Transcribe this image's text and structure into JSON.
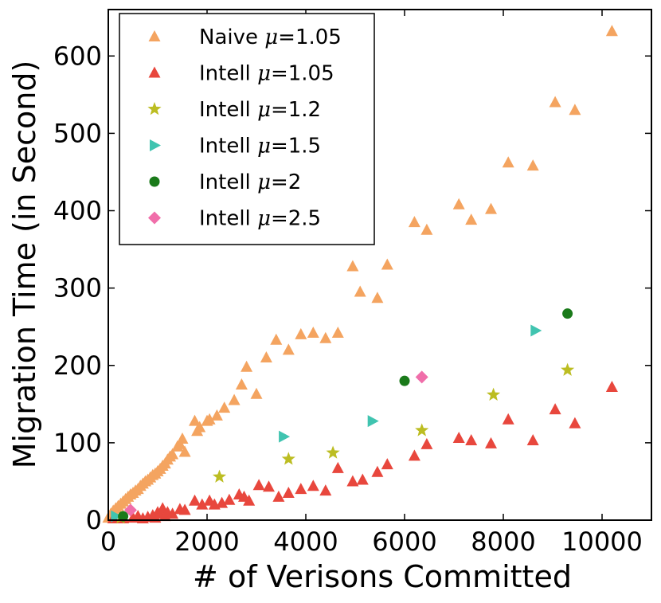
{
  "chart_data": {
    "type": "scatter",
    "title": "",
    "xlabel": "# of Verisons Committed",
    "ylabel": "Migration Time (in Second)",
    "xlim": [
      0,
      11000
    ],
    "ylim": [
      0,
      660
    ],
    "xticks": [
      0,
      2000,
      4000,
      6000,
      8000,
      10000
    ],
    "yticks": [
      0,
      100,
      200,
      300,
      400,
      500,
      600
    ],
    "grid": false,
    "legend_position": "top-left",
    "series": [
      {
        "name": "Naive",
        "mu": "1.05",
        "marker": "triangle-up",
        "color": "#f4a460",
        "points": [
          [
            0,
            3
          ],
          [
            50,
            8
          ],
          [
            100,
            12
          ],
          [
            150,
            15
          ],
          [
            200,
            18
          ],
          [
            250,
            21
          ],
          [
            300,
            24
          ],
          [
            350,
            27
          ],
          [
            400,
            30
          ],
          [
            450,
            33
          ],
          [
            500,
            35
          ],
          [
            550,
            38
          ],
          [
            600,
            40
          ],
          [
            650,
            44
          ],
          [
            700,
            47
          ],
          [
            750,
            50
          ],
          [
            800,
            52
          ],
          [
            850,
            55
          ],
          [
            900,
            58
          ],
          [
            950,
            60
          ],
          [
            1000,
            63
          ],
          [
            1050,
            66
          ],
          [
            1100,
            70
          ],
          [
            1150,
            73
          ],
          [
            1200,
            78
          ],
          [
            1250,
            82
          ],
          [
            1300,
            85
          ],
          [
            1400,
            95
          ],
          [
            1450,
            98
          ],
          [
            1500,
            105
          ],
          [
            1550,
            88
          ],
          [
            1750,
            128
          ],
          [
            1800,
            115
          ],
          [
            1850,
            120
          ],
          [
            2000,
            128
          ],
          [
            2050,
            130
          ],
          [
            2200,
            135
          ],
          [
            2350,
            145
          ],
          [
            2550,
            155
          ],
          [
            2700,
            175
          ],
          [
            2800,
            198
          ],
          [
            3000,
            163
          ],
          [
            3200,
            210
          ],
          [
            3400,
            233
          ],
          [
            3650,
            220
          ],
          [
            3900,
            240
          ],
          [
            4150,
            242
          ],
          [
            4400,
            235
          ],
          [
            4650,
            242
          ],
          [
            4950,
            328
          ],
          [
            5100,
            295
          ],
          [
            5450,
            287
          ],
          [
            5650,
            330
          ],
          [
            6200,
            385
          ],
          [
            6450,
            375
          ],
          [
            7100,
            408
          ],
          [
            7350,
            388
          ],
          [
            7750,
            402
          ],
          [
            8100,
            462
          ],
          [
            8600,
            458
          ],
          [
            9050,
            540
          ],
          [
            9450,
            530
          ],
          [
            10200,
            632
          ]
        ]
      },
      {
        "name": "Intell",
        "mu": "1.05",
        "marker": "triangle-up",
        "color": "#e8473d",
        "points": [
          [
            100,
            2
          ],
          [
            300,
            2
          ],
          [
            500,
            3
          ],
          [
            600,
            5
          ],
          [
            700,
            2
          ],
          [
            800,
            4
          ],
          [
            900,
            6
          ],
          [
            950,
            3
          ],
          [
            1000,
            10
          ],
          [
            1050,
            8
          ],
          [
            1100,
            15
          ],
          [
            1150,
            5
          ],
          [
            1200,
            10
          ],
          [
            1300,
            8
          ],
          [
            1450,
            14
          ],
          [
            1550,
            13
          ],
          [
            1750,
            25
          ],
          [
            1900,
            20
          ],
          [
            2050,
            25
          ],
          [
            2150,
            20
          ],
          [
            2300,
            22
          ],
          [
            2450,
            26
          ],
          [
            2650,
            33
          ],
          [
            2750,
            30
          ],
          [
            2850,
            25
          ],
          [
            3050,
            45
          ],
          [
            3250,
            43
          ],
          [
            3450,
            30
          ],
          [
            3650,
            35
          ],
          [
            3900,
            40
          ],
          [
            4150,
            44
          ],
          [
            4400,
            38
          ],
          [
            4650,
            67
          ],
          [
            4950,
            50
          ],
          [
            5150,
            52
          ],
          [
            5450,
            62
          ],
          [
            5650,
            72
          ],
          [
            6200,
            83
          ],
          [
            6450,
            98
          ],
          [
            7100,
            106
          ],
          [
            7350,
            103
          ],
          [
            7750,
            99
          ],
          [
            8100,
            130
          ],
          [
            8600,
            103
          ],
          [
            9050,
            143
          ],
          [
            9450,
            125
          ],
          [
            10200,
            172
          ]
        ]
      },
      {
        "name": "Intell",
        "mu": "1.2",
        "marker": "star",
        "color": "#bcbd22",
        "points": [
          [
            250,
            3
          ],
          [
            2250,
            56
          ],
          [
            3650,
            79
          ],
          [
            4550,
            87
          ],
          [
            6350,
            116
          ],
          [
            7800,
            162
          ],
          [
            9300,
            194
          ]
        ]
      },
      {
        "name": "Intell",
        "mu": "1.5",
        "marker": "triangle-right",
        "color": "#40c4b0",
        "points": [
          [
            150,
            5
          ],
          [
            3550,
            108
          ],
          [
            5350,
            128
          ],
          [
            8650,
            245
          ]
        ]
      },
      {
        "name": "Intell",
        "mu": "2",
        "marker": "circle",
        "color": "#1a7a1a",
        "points": [
          [
            300,
            5
          ],
          [
            6000,
            180
          ],
          [
            9300,
            267
          ]
        ]
      },
      {
        "name": "Intell",
        "mu": "2.5",
        "marker": "diamond",
        "color": "#f06eaa",
        "points": [
          [
            450,
            13
          ],
          [
            6350,
            185
          ]
        ]
      }
    ]
  }
}
